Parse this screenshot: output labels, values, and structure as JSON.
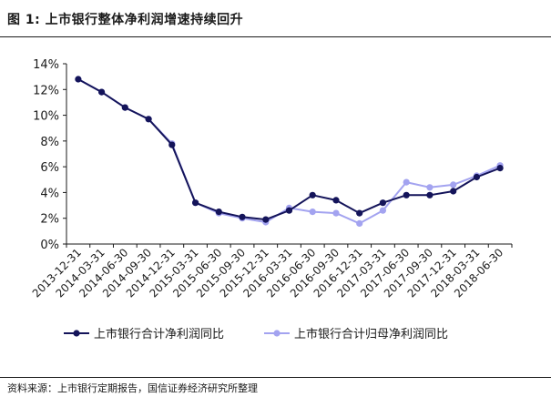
{
  "figure": {
    "title": "图 1:  上市银行整体净利润增速持续回升",
    "source": "资料来源：上市银行定期报告，国信证券经济研究所整理"
  },
  "chart_data": {
    "type": "line",
    "x": [
      "2013-12-31",
      "2014-03-31",
      "2014-06-30",
      "2014-09-30",
      "2014-12-31",
      "2015-03-31",
      "2015-06-30",
      "2015-09-30",
      "2015-12-31",
      "2016-03-31",
      "2016-06-30",
      "2016-09-30",
      "2016-12-31",
      "2017-03-31",
      "2017-06-30",
      "2017-09-30",
      "2017-12-31",
      "2018-03-31",
      "2018-06-30"
    ],
    "y_ticks": [
      "0%",
      "2%",
      "4%",
      "6%",
      "8%",
      "10%",
      "12%",
      "14%"
    ],
    "ylim": [
      0,
      14
    ],
    "grid": false,
    "legend_position": "bottom",
    "series": [
      {
        "name": "上市银行合计净利润同比",
        "color": "#14145a",
        "values": [
          12.8,
          11.8,
          10.6,
          9.7,
          7.7,
          3.2,
          2.5,
          2.1,
          1.9,
          2.6,
          3.8,
          3.4,
          2.4,
          3.2,
          3.8,
          3.8,
          4.1,
          5.2,
          5.9
        ]
      },
      {
        "name": "上市银行合计归母净利润同比",
        "color": "#a3a3f0",
        "values": [
          12.8,
          11.8,
          10.6,
          9.7,
          7.8,
          3.2,
          2.4,
          2.0,
          1.7,
          2.8,
          2.5,
          2.4,
          1.6,
          2.6,
          4.8,
          4.4,
          4.6,
          5.3,
          6.1
        ]
      }
    ]
  }
}
